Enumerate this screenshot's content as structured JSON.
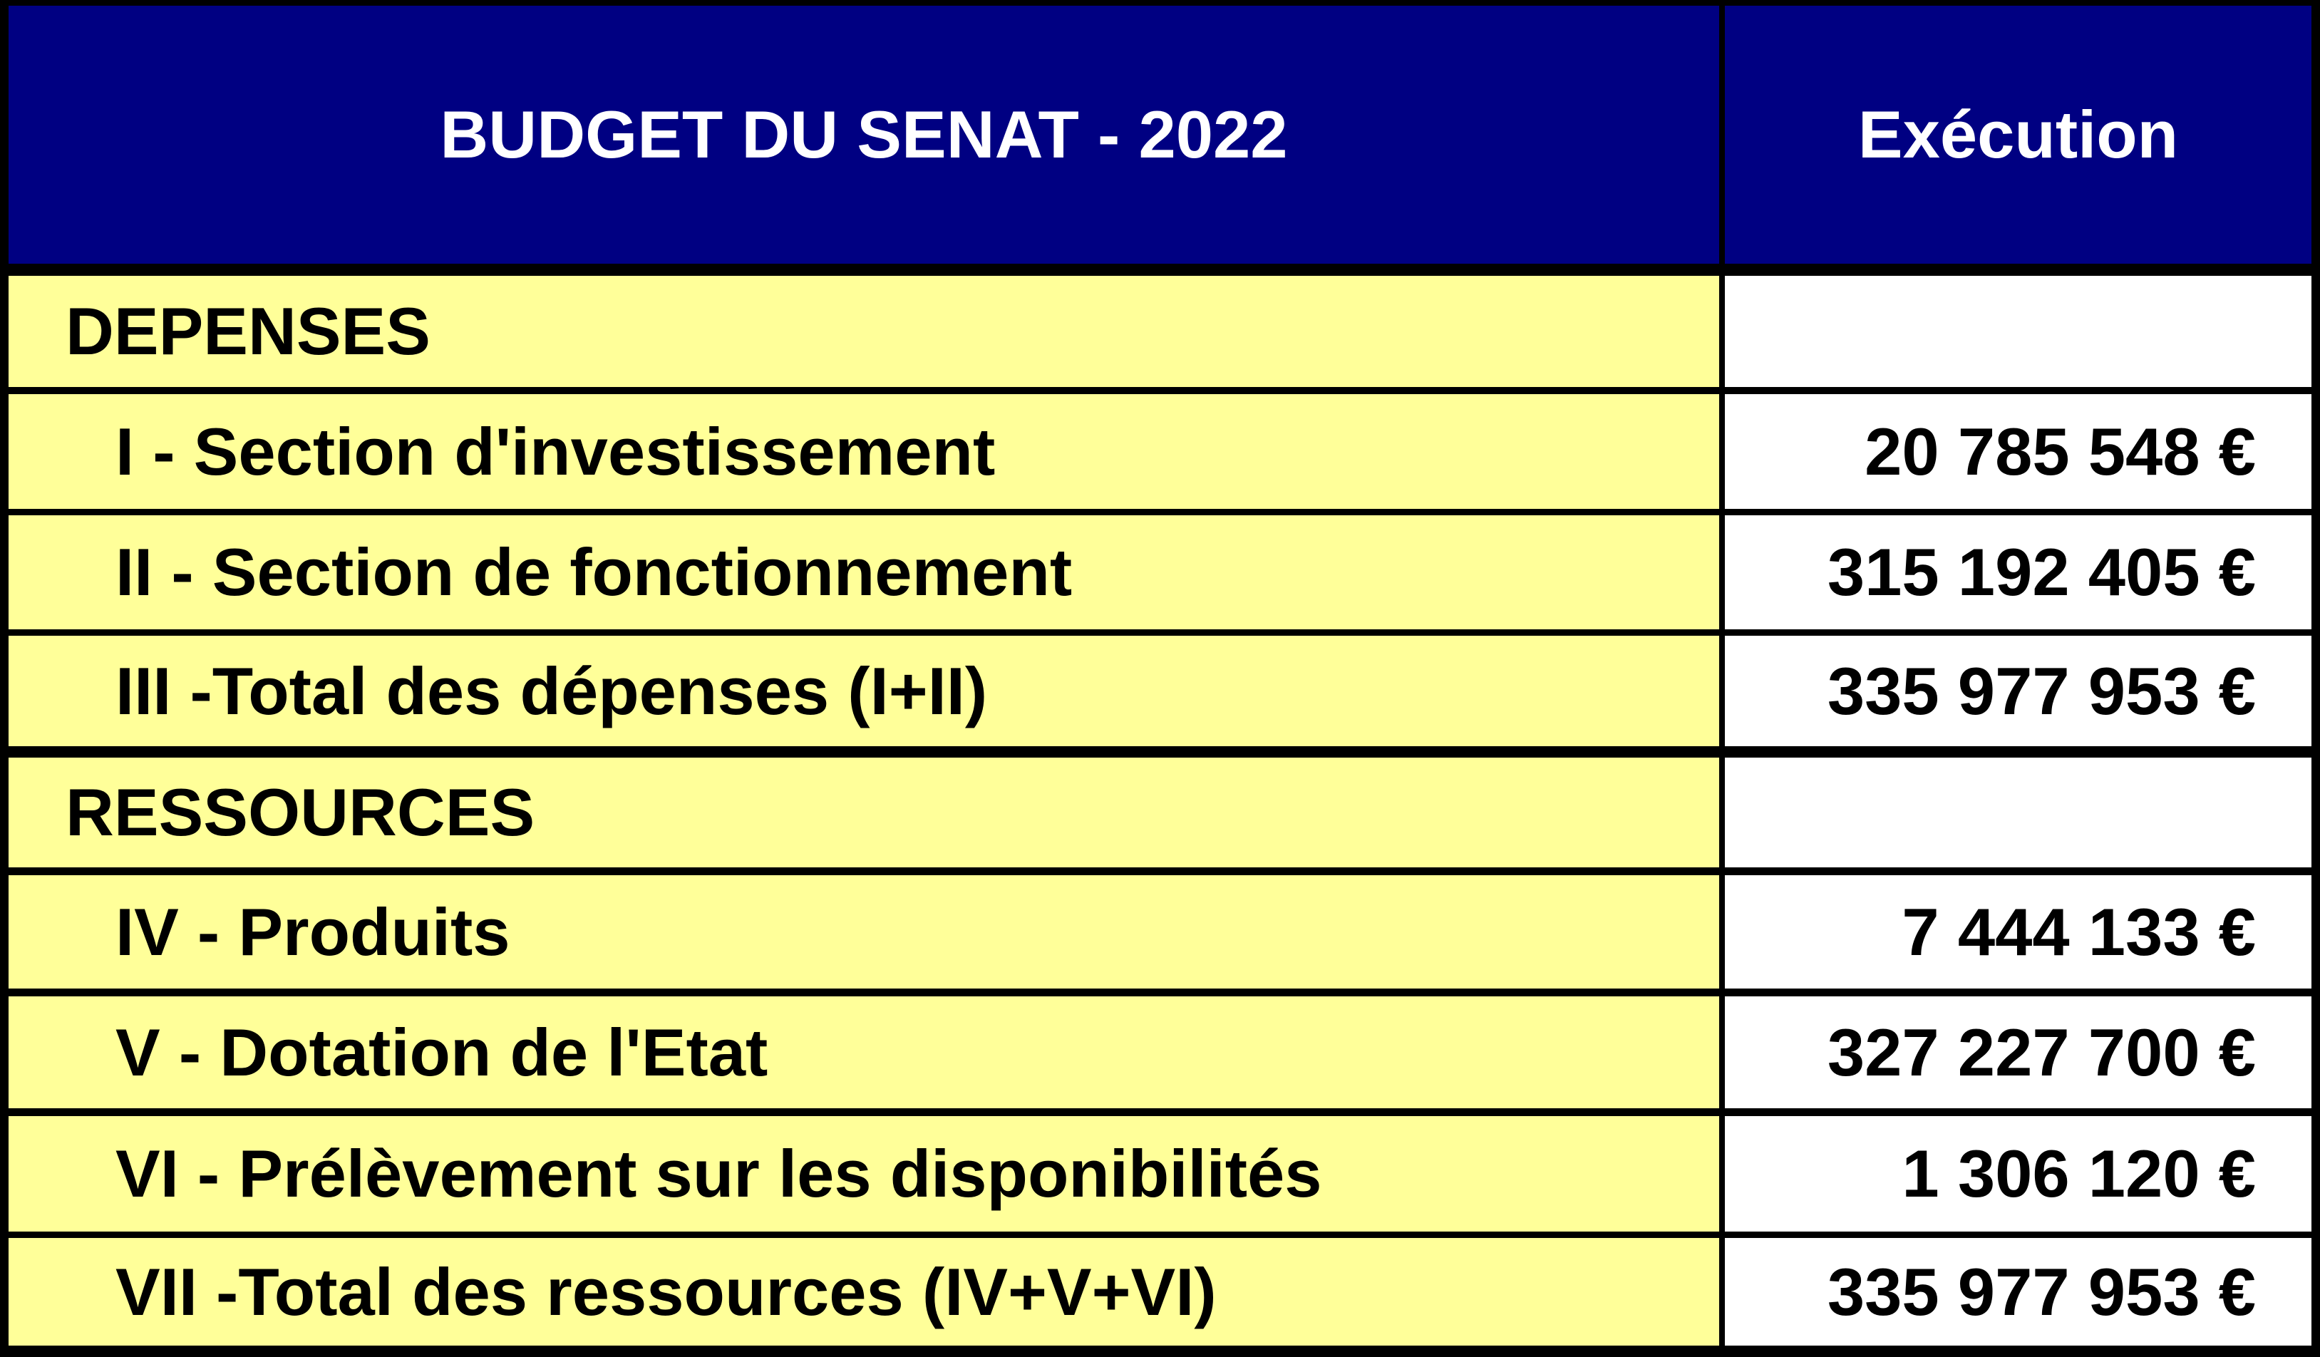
{
  "table": {
    "title": "BUDGET DU SENAT - 2022",
    "execution_column": "Exécution",
    "rows": [
      {
        "label": "DEPENSES",
        "value": "",
        "type": "section"
      },
      {
        "label": "I - Section d'investissement",
        "value": "20 785 548 €",
        "type": "item"
      },
      {
        "label": "II - Section de fonctionnement",
        "value": "315 192 405 €",
        "type": "item"
      },
      {
        "label": "III -Total des dépenses (I+II)",
        "value": "335 977 953 €",
        "type": "item"
      },
      {
        "label": "RESSOURCES",
        "value": "",
        "type": "section"
      },
      {
        "label": "IV - Produits",
        "value": "7 444 133 €",
        "type": "item"
      },
      {
        "label": "V - Dotation de l'Etat",
        "value": "327 227 700 €",
        "type": "item"
      },
      {
        "label": "VI - Prélèvement sur les disponibilités",
        "value": "1 306 120 €",
        "type": "item"
      },
      {
        "label": "VII -Total des ressources (IV+V+VI)",
        "value": "335 977 953 €",
        "type": "item"
      }
    ],
    "colors": {
      "header_bg": "#000082",
      "header_text": "#FFFFFF",
      "label_bg": "#FFFF99",
      "value_bg": "#FFFFFF",
      "body_text": "#000000",
      "border": "#000000"
    }
  },
  "chart_data": {
    "type": "table",
    "title": "BUDGET DU SENAT - 2022",
    "columns": [
      "",
      "Exécution"
    ],
    "sections": [
      {
        "name": "DEPENSES",
        "rows": [
          {
            "label": "I - Section d'investissement",
            "value_eur": 20785548
          },
          {
            "label": "II - Section de fonctionnement",
            "value_eur": 315192405
          },
          {
            "label": "III -Total des dépenses (I+II)",
            "value_eur": 335977953
          }
        ]
      },
      {
        "name": "RESSOURCES",
        "rows": [
          {
            "label": "IV - Produits",
            "value_eur": 7444133
          },
          {
            "label": "V - Dotation de l'Etat",
            "value_eur": 327227700
          },
          {
            "label": "VI - Prélèvement sur les disponibilités",
            "value_eur": 1306120
          },
          {
            "label": "VII -Total des ressources (IV+V+VI)",
            "value_eur": 335977953
          }
        ]
      }
    ]
  }
}
